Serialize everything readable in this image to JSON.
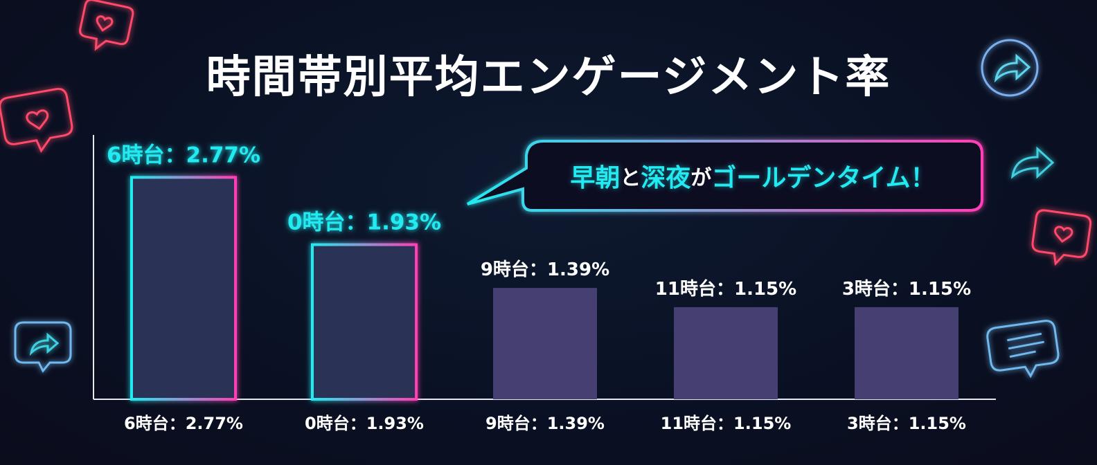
{
  "title": "時間帯別平均エンゲージメント率",
  "callout": {
    "parts": [
      {
        "text": "早朝",
        "style": "cyan"
      },
      {
        "text": "と",
        "style": "white"
      },
      {
        "text": "深夜",
        "style": "cyan"
      },
      {
        "text": "が",
        "style": "white"
      },
      {
        "text": "ゴールデンタイム！",
        "style": "cyan"
      }
    ]
  },
  "colors": {
    "cyan": "#22eaf0",
    "pink": "#ff3fb5",
    "bar_plain": "#463f72",
    "bar_highlight_fill": "#2b3254",
    "background": "#0a1124"
  },
  "decorations": [
    "heart-bubble-icon",
    "share-arrow-icon",
    "share-bubble-icon",
    "message-bubble-icon"
  ],
  "chart_data": {
    "type": "bar",
    "title": "時間帯別平均エンゲージメント率",
    "categories": [
      "6時台",
      "0時台",
      "9時台",
      "11時台",
      "3時台"
    ],
    "values": [
      2.77,
      1.93,
      1.39,
      1.15,
      1.15
    ],
    "unit": "%",
    "data_labels": [
      "6時台：2.77%",
      "0時台：1.93%",
      "9時台：1.39%",
      "11時台：1.15%",
      "3時台：1.15%"
    ],
    "tick_labels": [
      "6時台：2.77%",
      "0時台：1.93%",
      "9時台：1.39%",
      "11時台：1.15%",
      "3時台：1.15%"
    ],
    "highlighted": [
      true,
      true,
      false,
      false,
      false
    ],
    "xlabel": "",
    "ylabel": "",
    "ylim": [
      0,
      3.3
    ],
    "grid": false,
    "legend": "none"
  }
}
